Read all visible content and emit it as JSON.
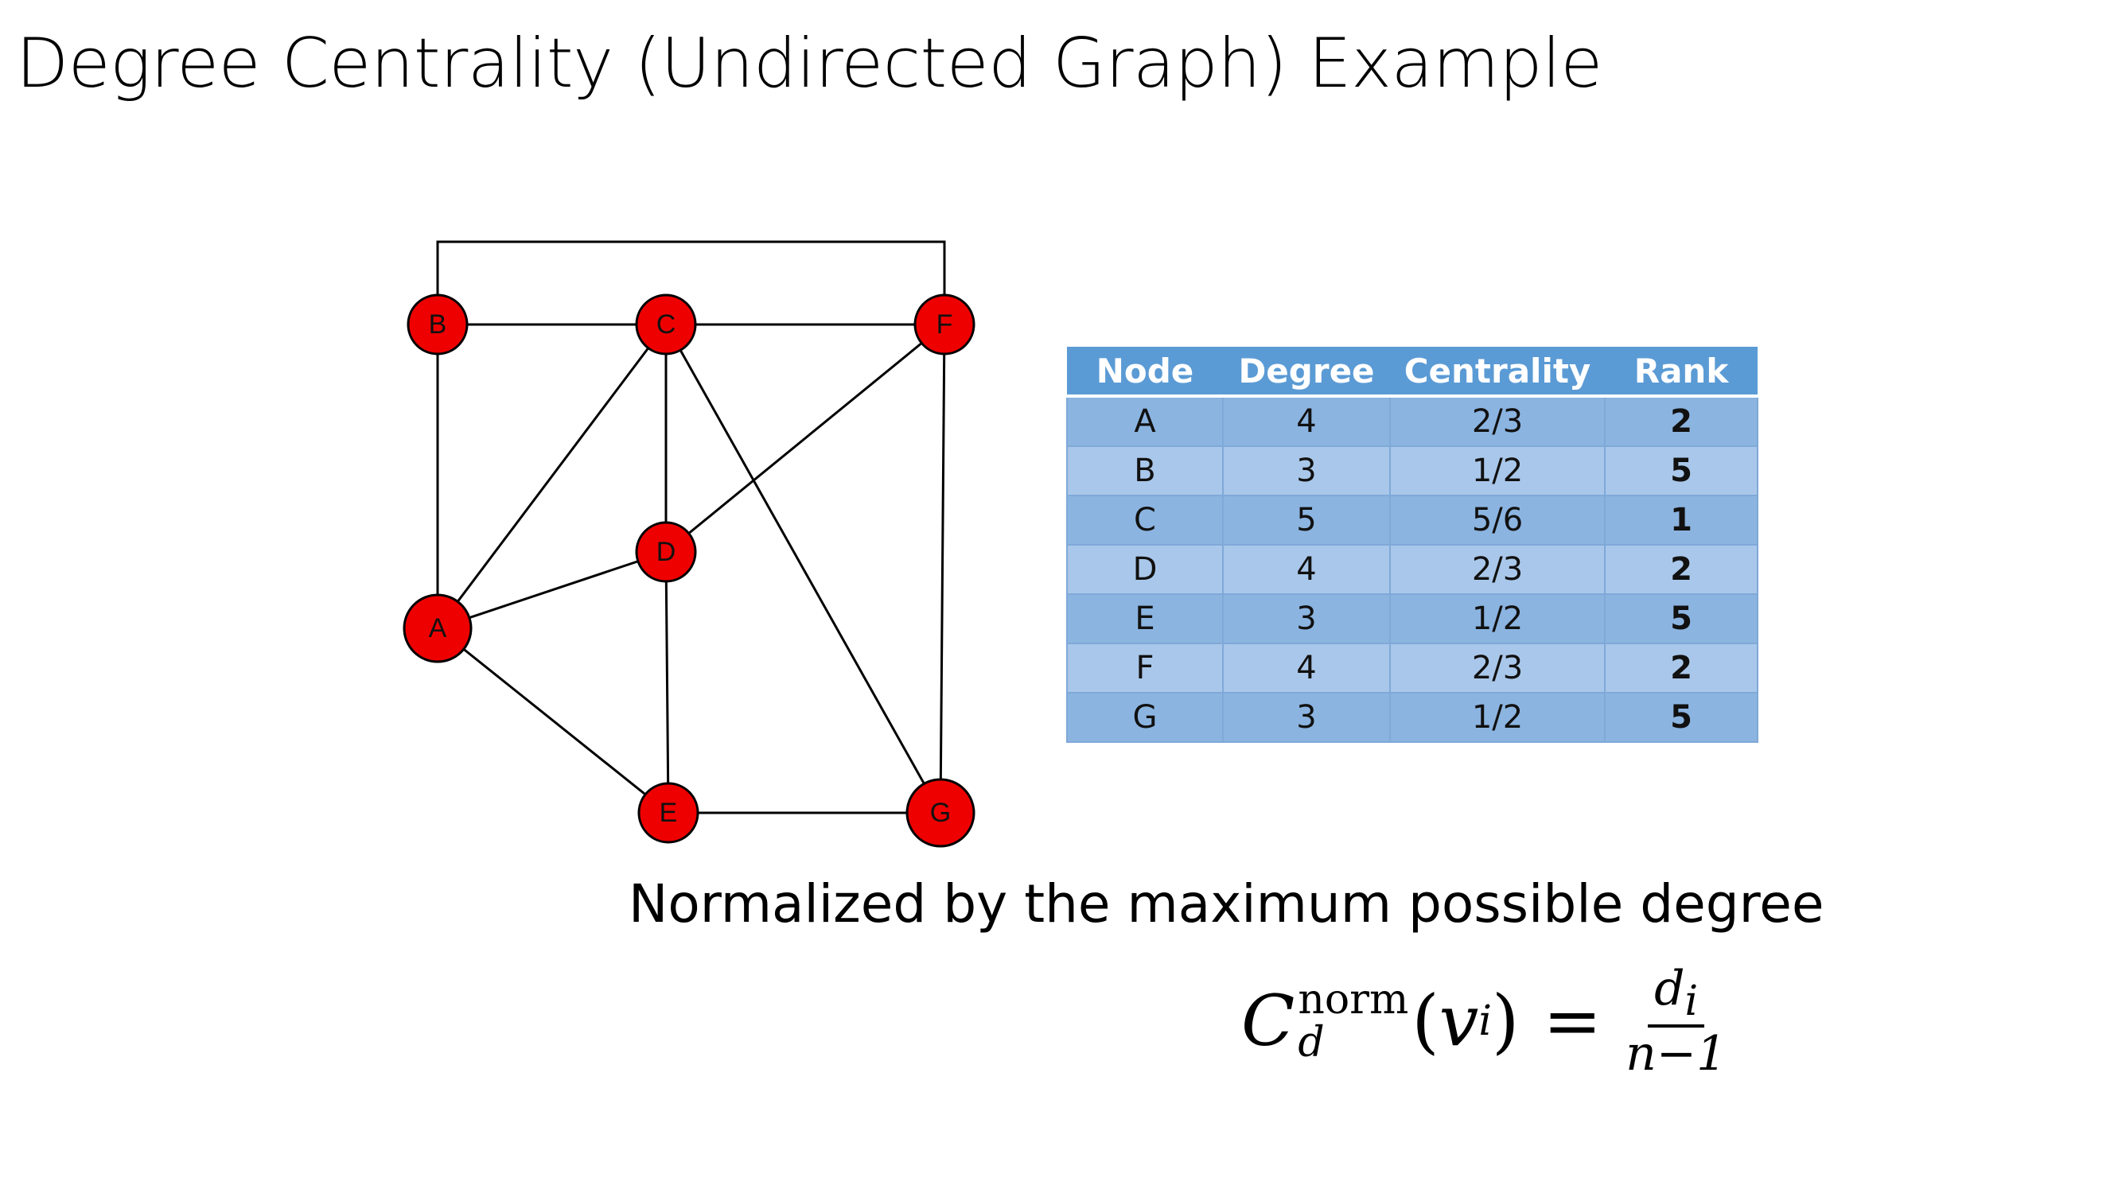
{
  "title": "Degree Centrality (Undirected Graph) Example",
  "graph": {
    "nodes": [
      "A",
      "B",
      "C",
      "D",
      "E",
      "F",
      "G"
    ],
    "edges": [
      [
        "B",
        "F"
      ],
      [
        "B",
        "C"
      ],
      [
        "C",
        "F"
      ],
      [
        "B",
        "A"
      ],
      [
        "C",
        "A"
      ],
      [
        "C",
        "D"
      ],
      [
        "C",
        "G"
      ],
      [
        "F",
        "D"
      ],
      [
        "F",
        "G"
      ],
      [
        "A",
        "D"
      ],
      [
        "A",
        "E"
      ],
      [
        "D",
        "E"
      ],
      [
        "E",
        "G"
      ]
    ],
    "node_color": "#ee0000"
  },
  "table": {
    "headers": [
      "Node",
      "Degree",
      "Centrality",
      "Rank"
    ],
    "header_color": "#5b9bd5",
    "rows": [
      {
        "node": "A",
        "degree": "4",
        "centrality": "2/3",
        "rank": "2"
      },
      {
        "node": "B",
        "degree": "3",
        "centrality": "1/2",
        "rank": "5"
      },
      {
        "node": "C",
        "degree": "5",
        "centrality": "5/6",
        "rank": "1"
      },
      {
        "node": "D",
        "degree": "4",
        "centrality": "2/3",
        "rank": "2"
      },
      {
        "node": "E",
        "degree": "3",
        "centrality": "1/2",
        "rank": "5"
      },
      {
        "node": "F",
        "degree": "4",
        "centrality": "2/3",
        "rank": "2"
      },
      {
        "node": "G",
        "degree": "3",
        "centrality": "1/2",
        "rank": "5"
      }
    ]
  },
  "caption": "Normalized by the maximum possible degree",
  "formula": {
    "symbol": "C",
    "superscript": "norm",
    "subscript": "d",
    "argument_open": "(",
    "argument_var": "v",
    "argument_sub": "i",
    "argument_close": ")",
    "equals": "=",
    "numerator_var": "d",
    "numerator_sub": "i",
    "denominator": "n−1"
  }
}
